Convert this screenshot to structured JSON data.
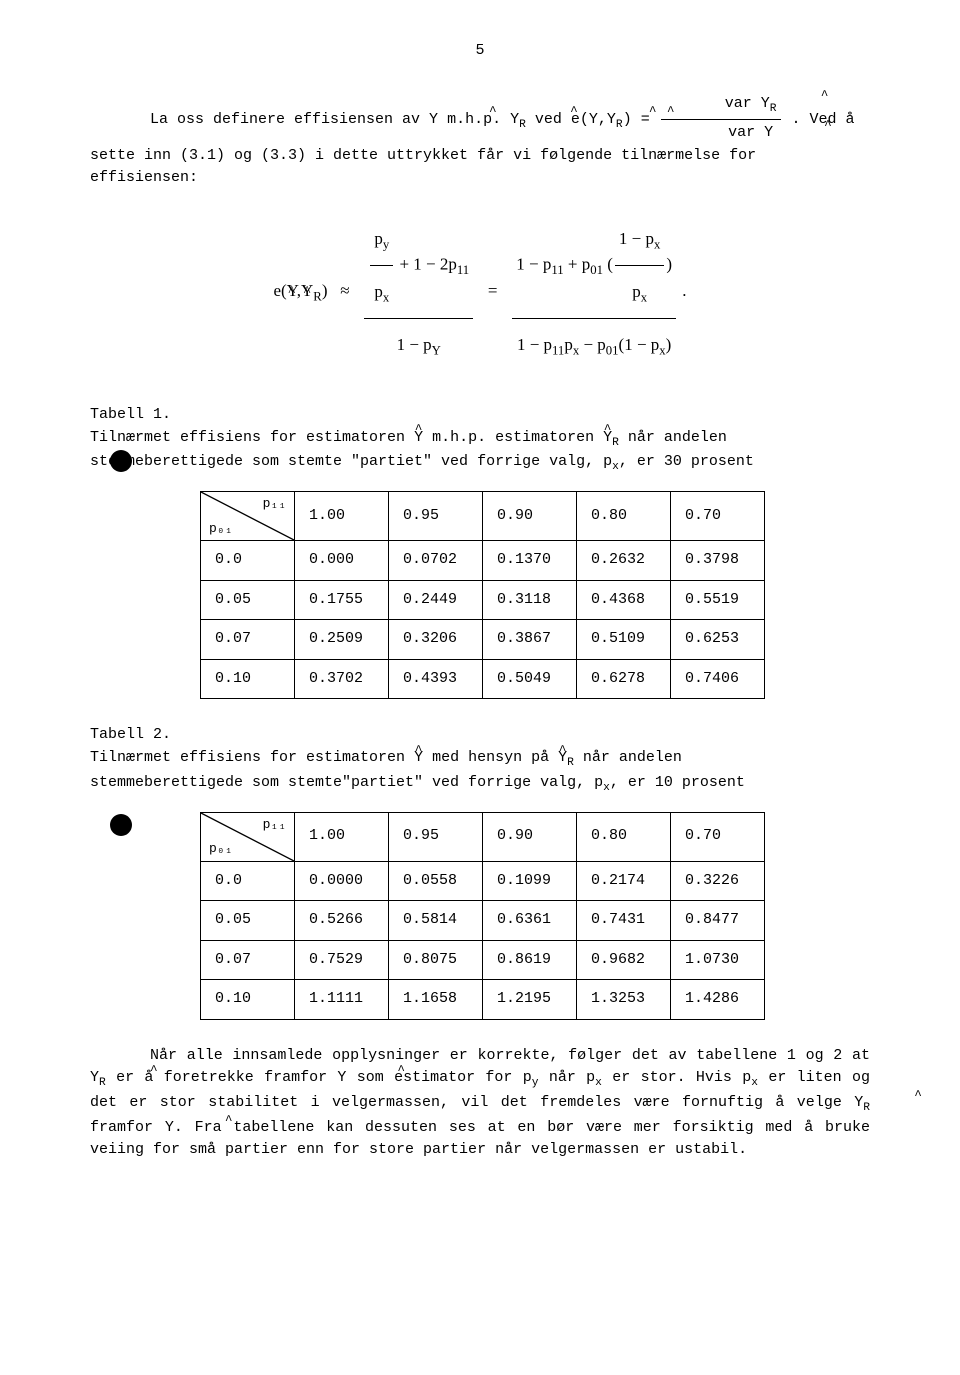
{
  "page_number": "5",
  "intro_paragraph_html": "La oss definere effisiensen av <span class=\"hat\">Y</span> m.h.p. <span class=\"hat\">Y</span><sub>R</sub> ved e(<span class=\"hat\">Y</span>,<span class=\"hat\">Y</span><sub>R</sub>) = <span class=\"frac\"><span class=\"num\">var <span class=\"hat\">Y</span><sub>R</sub></span><span class=\"den\">var <span class=\"hat\">Y</span></span></span> . Ved å sette inn (3.1) og (3.3) i dette uttrykket får vi følgende tilnærmelse for effisiensen:",
  "formula_html": "e(<span class=\"hat\">Y</span>,<span class=\"hat\">Y</span><sub>R</sub>) &nbsp;&nbsp;≈&nbsp;&nbsp; <span class=\"frac\"><span class=\"num\"><span class=\"frac\"><span class=\"num\">p<sub>y</sub></span><span class=\"den\">p<sub>x</sub></span></span> + 1 − 2p<sub>11</sub></span><span class=\"den\">1 − p<sub>Y</sub></span></span> &nbsp;&nbsp;=&nbsp;&nbsp; <span class=\"frac\"><span class=\"num\">1 − p<sub>11</sub> + p<sub>01</sub> (<span class=\"frac\"><span class=\"num\">1 − p<sub>x</sub></span><span class=\"den\">p<sub>x</sub></span></span>)</span><span class=\"den\">1 − p<sub>11</sub>p<sub>x</sub> − p<sub>01</sub>(1 − p<sub>x</sub>)</span></span> .",
  "table1": {
    "label": "Tabell 1.",
    "caption_html": "Tilnærmet effisiens for estimatoren <span class=\"hat\">Y</span> m.h.p. estimatoren <span class=\"hat\">Y</span><sub>R</sub> når andelen stemmeberettigede som stemte \"partiet\" ved forrige valg, p<sub>x</sub>, er 30 prosent",
    "diag_top": "p₁₁",
    "diag_bot": "p₀₁",
    "columns": [
      "1.00",
      "0.95",
      "0.90",
      "0.80",
      "0.70"
    ],
    "rows": [
      {
        "h": "0.0",
        "v": [
          "0.000",
          "0.0702",
          "0.1370",
          "0.2632",
          "0.3798"
        ]
      },
      {
        "h": "0.05",
        "v": [
          "0.1755",
          "0.2449",
          "0.3118",
          "0.4368",
          "0.5519"
        ]
      },
      {
        "h": "0.07",
        "v": [
          "0.2509",
          "0.3206",
          "0.3867",
          "0.5109",
          "0.6253"
        ]
      },
      {
        "h": "0.10",
        "v": [
          "0.3702",
          "0.4393",
          "0.5049",
          "0.6278",
          "0.7406"
        ]
      }
    ]
  },
  "table2": {
    "label": "Tabell 2.",
    "caption_html": "Tilnærmet effisiens for estimatoren <span class=\"hat\">Y</span> med hensyn på <span class=\"hat\">Y</span><sub>R</sub> når andelen stemmeberettigede som stemte\"partiet\" ved forrige valg, p<sub>x</sub>, er 10 prosent",
    "diag_top": "p₁₁",
    "diag_bot": "p₀₁",
    "columns": [
      "1.00",
      "0.95",
      "0.90",
      "0.80",
      "0.70"
    ],
    "rows": [
      {
        "h": "0.0",
        "v": [
          "0.0000",
          "0.0558",
          "0.1099",
          "0.2174",
          "0.3226"
        ]
      },
      {
        "h": "0.05",
        "v": [
          "0.5266",
          "0.5814",
          "0.6361",
          "0.7431",
          "0.8477"
        ]
      },
      {
        "h": "0.07",
        "v": [
          "0.7529",
          "0.8075",
          "0.8619",
          "0.9682",
          "1.0730"
        ]
      },
      {
        "h": "0.10",
        "v": [
          "1.1111",
          "1.1658",
          "1.2195",
          "1.3253",
          "1.4286"
        ]
      }
    ]
  },
  "closing_paragraph_html": "Når alle innsamlede opplysninger er korrekte, følger det av tabellene 1 og 2 at <span class=\"hat\">Y</span><sub>R</sub> er å foretrekke framfor <span class=\"hat\">Y</span> som estimator for p<sub>y</sub> når p<sub>x</sub> er stor. Hvis p<sub>x</sub> er liten og det er stor stabilitet i velgermassen, vil det fremdeles være fornuftig å velge <span class=\"hat\">Y</span><sub>R</sub> framfor <span class=\"hat\">Y</span>. Fra tabellene kan dessuten ses at en bør være mer forsiktig med å bruke veiing for små partier enn for store partier når velgermassen er ustabil."
}
